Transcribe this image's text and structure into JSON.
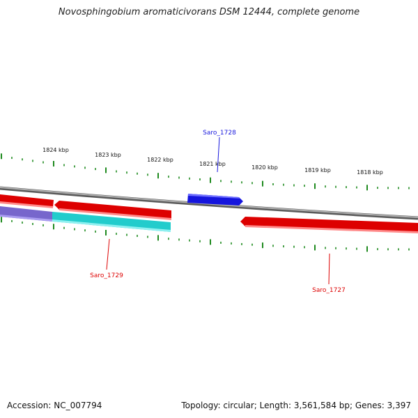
{
  "title": "Novosphingobium aromaticivorans DSM 12444, complete genome",
  "footer": {
    "accession": "Accession: NC_007794",
    "summary": "Topology: circular; Length: 3,561,584 bp; Genes: 3,397"
  },
  "scale_labels": [
    "1824 kbp",
    "1823 kbp",
    "1822 kbp",
    "1821 kbp",
    "1820 kbp",
    "1819 kbp",
    "1818 kbp"
  ],
  "genes": [
    {
      "name": "Saro_1728",
      "strand": "forward",
      "color": "#1515dd"
    },
    {
      "name": "Saro_1729",
      "strand": "reverse",
      "color": "#dd0000"
    },
    {
      "name": "Saro_1727",
      "strand": "reverse",
      "color": "#dd0000"
    }
  ],
  "colors": {
    "backbone": "#8a8a8a",
    "tick": "#1e8a1e",
    "forward_gene": "#1515dd",
    "reverse_gene": "#dd0000",
    "feature_cyan": "#22cccc",
    "feature_purple": "#7766cc"
  }
}
